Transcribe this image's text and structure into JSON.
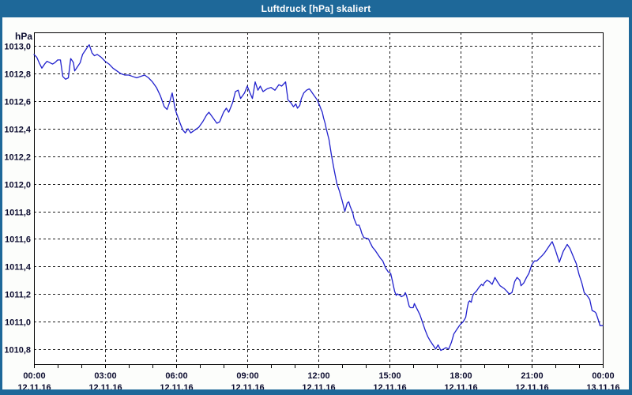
{
  "window": {
    "title": "Luftdruck [hPa] skaliert"
  },
  "colors": {
    "titlebar": "#1e6899",
    "window_border": "#1e6899",
    "window_bg": "#fcfdfb",
    "plot_bg": "#ffffff",
    "grid": "#1c1c1c",
    "frame": "#000000",
    "tick_label": "#0d0d30",
    "line": "#2121cd"
  },
  "chart_data": {
    "type": "line",
    "title": "Luftdruck [hPa] skaliert",
    "ylabel": "hPa",
    "xlabel": "",
    "grid": true,
    "legend": "none",
    "decimal_separator": ",",
    "ylim": [
      1010.69,
      1013.1
    ],
    "xlim_minutes": [
      0,
      1440
    ],
    "y_ticks": [
      1013.0,
      1012.8,
      1012.6,
      1012.4,
      1012.2,
      1012.0,
      1011.8,
      1011.6,
      1011.4,
      1011.2,
      1011.0,
      1010.8
    ],
    "x_minor_tick_minutes": 60,
    "x_ticks": [
      {
        "minutes": 0,
        "time": "00:00",
        "date": "12.11.16"
      },
      {
        "minutes": 180,
        "time": "03:00",
        "date": "12.11.16"
      },
      {
        "minutes": 360,
        "time": "06:00",
        "date": "12.11.16"
      },
      {
        "minutes": 540,
        "time": "09:00",
        "date": "12.11.16"
      },
      {
        "minutes": 720,
        "time": "12:00",
        "date": "12.11.16"
      },
      {
        "minutes": 900,
        "time": "15:00",
        "date": "12.11.16"
      },
      {
        "minutes": 1080,
        "time": "18:00",
        "date": "12.11.16"
      },
      {
        "minutes": 1260,
        "time": "21:00",
        "date": "12.11.16"
      },
      {
        "minutes": 1440,
        "time": "00:00",
        "date": "13.11.16"
      }
    ],
    "series": [
      {
        "name": "Luftdruck",
        "points": [
          [
            0,
            1012.94
          ],
          [
            7,
            1012.92
          ],
          [
            13,
            1012.88
          ],
          [
            20,
            1012.84
          ],
          [
            27,
            1012.87
          ],
          [
            33,
            1012.89
          ],
          [
            40,
            1012.88
          ],
          [
            47,
            1012.87
          ],
          [
            53,
            1012.88
          ],
          [
            60,
            1012.9
          ],
          [
            67,
            1012.9
          ],
          [
            73,
            1012.78
          ],
          [
            80,
            1012.76
          ],
          [
            87,
            1012.77
          ],
          [
            93,
            1012.91
          ],
          [
            100,
            1012.88
          ],
          [
            103,
            1012.82
          ],
          [
            110,
            1012.85
          ],
          [
            117,
            1012.88
          ],
          [
            123,
            1012.94
          ],
          [
            130,
            1012.97
          ],
          [
            137,
            1013.0
          ],
          [
            140,
            1013.01
          ],
          [
            147,
            1012.95
          ],
          [
            153,
            1012.93
          ],
          [
            160,
            1012.94
          ],
          [
            170,
            1012.92
          ],
          [
            180,
            1012.89
          ],
          [
            190,
            1012.87
          ],
          [
            200,
            1012.84
          ],
          [
            210,
            1012.82
          ],
          [
            220,
            1012.8
          ],
          [
            230,
            1012.79
          ],
          [
            240,
            1012.79
          ],
          [
            250,
            1012.78
          ],
          [
            260,
            1012.77
          ],
          [
            270,
            1012.78
          ],
          [
            280,
            1012.79
          ],
          [
            290,
            1012.77
          ],
          [
            300,
            1012.74
          ],
          [
            310,
            1012.7
          ],
          [
            320,
            1012.64
          ],
          [
            330,
            1012.56
          ],
          [
            337,
            1012.54
          ],
          [
            343,
            1012.59
          ],
          [
            350,
            1012.66
          ],
          [
            357,
            1012.55
          ],
          [
            360,
            1012.52
          ],
          [
            370,
            1012.44
          ],
          [
            377,
            1012.39
          ],
          [
            383,
            1012.37
          ],
          [
            390,
            1012.4
          ],
          [
            397,
            1012.37
          ],
          [
            407,
            1012.39
          ],
          [
            417,
            1012.41
          ],
          [
            427,
            1012.45
          ],
          [
            437,
            1012.5
          ],
          [
            443,
            1012.52
          ],
          [
            453,
            1012.48
          ],
          [
            463,
            1012.44
          ],
          [
            470,
            1012.45
          ],
          [
            480,
            1012.52
          ],
          [
            487,
            1012.55
          ],
          [
            493,
            1012.52
          ],
          [
            503,
            1012.59
          ],
          [
            510,
            1012.67
          ],
          [
            517,
            1012.68
          ],
          [
            523,
            1012.62
          ],
          [
            533,
            1012.66
          ],
          [
            540,
            1012.71
          ],
          [
            547,
            1012.66
          ],
          [
            553,
            1012.62
          ],
          [
            560,
            1012.74
          ],
          [
            567,
            1012.68
          ],
          [
            573,
            1012.71
          ],
          [
            580,
            1012.67
          ],
          [
            590,
            1012.69
          ],
          [
            600,
            1012.7
          ],
          [
            610,
            1012.68
          ],
          [
            620,
            1012.72
          ],
          [
            627,
            1012.71
          ],
          [
            637,
            1012.74
          ],
          [
            643,
            1012.61
          ],
          [
            650,
            1012.59
          ],
          [
            657,
            1012.56
          ],
          [
            663,
            1012.58
          ],
          [
            667,
            1012.55
          ],
          [
            673,
            1012.57
          ],
          [
            677,
            1012.62
          ],
          [
            683,
            1012.66
          ],
          [
            690,
            1012.68
          ],
          [
            697,
            1012.69
          ],
          [
            700,
            1012.68
          ],
          [
            707,
            1012.65
          ],
          [
            712,
            1012.63
          ],
          [
            717,
            1012.61
          ],
          [
            720,
            1012.59
          ],
          [
            723,
            1012.57
          ],
          [
            727,
            1012.54
          ],
          [
            730,
            1012.52
          ],
          [
            733,
            1012.48
          ],
          [
            737,
            1012.44
          ],
          [
            740,
            1012.4
          ],
          [
            747,
            1012.32
          ],
          [
            753,
            1012.21
          ],
          [
            760,
            1012.1
          ],
          [
            767,
            1012.0
          ],
          [
            773,
            1011.95
          ],
          [
            780,
            1011.88
          ],
          [
            787,
            1011.8
          ],
          [
            793,
            1011.86
          ],
          [
            797,
            1011.87
          ],
          [
            800,
            1011.84
          ],
          [
            807,
            1011.79
          ],
          [
            810,
            1011.75
          ],
          [
            817,
            1011.7
          ],
          [
            823,
            1011.7
          ],
          [
            827,
            1011.67
          ],
          [
            830,
            1011.64
          ],
          [
            835,
            1011.61
          ],
          [
            847,
            1011.6
          ],
          [
            850,
            1011.58
          ],
          [
            857,
            1011.54
          ],
          [
            863,
            1011.52
          ],
          [
            870,
            1011.49
          ],
          [
            877,
            1011.46
          ],
          [
            883,
            1011.44
          ],
          [
            890,
            1011.39
          ],
          [
            897,
            1011.36
          ],
          [
            903,
            1011.35
          ],
          [
            907,
            1011.3
          ],
          [
            913,
            1011.22
          ],
          [
            917,
            1011.19
          ],
          [
            920,
            1011.2
          ],
          [
            927,
            1011.19
          ],
          [
            930,
            1011.18
          ],
          [
            937,
            1011.19
          ],
          [
            940,
            1011.21
          ],
          [
            943,
            1011.19
          ],
          [
            950,
            1011.11
          ],
          [
            953,
            1011.1
          ],
          [
            960,
            1011.1
          ],
          [
            963,
            1011.13
          ],
          [
            970,
            1011.09
          ],
          [
            977,
            1011.05
          ],
          [
            983,
            1011.0
          ],
          [
            990,
            1010.94
          ],
          [
            997,
            1010.89
          ],
          [
            1003,
            1010.86
          ],
          [
            1010,
            1010.83
          ],
          [
            1017,
            1010.8
          ],
          [
            1023,
            1010.83
          ],
          [
            1030,
            1010.79
          ],
          [
            1037,
            1010.8
          ],
          [
            1043,
            1010.81
          ],
          [
            1050,
            1010.8
          ],
          [
            1057,
            1010.85
          ],
          [
            1063,
            1010.91
          ],
          [
            1070,
            1010.94
          ],
          [
            1077,
            1010.97
          ],
          [
            1080,
            1010.98
          ],
          [
            1087,
            1011.0
          ],
          [
            1093,
            1011.03
          ],
          [
            1097,
            1011.1
          ],
          [
            1100,
            1011.14
          ],
          [
            1103,
            1011.15
          ],
          [
            1107,
            1011.14
          ],
          [
            1110,
            1011.18
          ],
          [
            1113,
            1011.2
          ],
          [
            1120,
            1011.22
          ],
          [
            1127,
            1011.25
          ],
          [
            1133,
            1011.27
          ],
          [
            1137,
            1011.26
          ],
          [
            1140,
            1011.28
          ],
          [
            1147,
            1011.3
          ],
          [
            1153,
            1011.29
          ],
          [
            1160,
            1011.27
          ],
          [
            1167,
            1011.32
          ],
          [
            1173,
            1011.29
          ],
          [
            1180,
            1011.26
          ],
          [
            1190,
            1011.24
          ],
          [
            1197,
            1011.22
          ],
          [
            1203,
            1011.2
          ],
          [
            1210,
            1011.21
          ],
          [
            1217,
            1011.29
          ],
          [
            1223,
            1011.32
          ],
          [
            1230,
            1011.3
          ],
          [
            1233,
            1011.26
          ],
          [
            1240,
            1011.28
          ],
          [
            1247,
            1011.32
          ],
          [
            1253,
            1011.35
          ],
          [
            1260,
            1011.41
          ],
          [
            1267,
            1011.44
          ],
          [
            1273,
            1011.44
          ],
          [
            1280,
            1011.46
          ],
          [
            1287,
            1011.48
          ],
          [
            1293,
            1011.5
          ],
          [
            1300,
            1011.53
          ],
          [
            1307,
            1011.56
          ],
          [
            1312,
            1011.58
          ],
          [
            1320,
            1011.52
          ],
          [
            1330,
            1011.43
          ],
          [
            1340,
            1011.51
          ],
          [
            1350,
            1011.56
          ],
          [
            1357,
            1011.53
          ],
          [
            1367,
            1011.46
          ],
          [
            1373,
            1011.42
          ],
          [
            1380,
            1011.34
          ],
          [
            1387,
            1011.28
          ],
          [
            1393,
            1011.21
          ],
          [
            1400,
            1011.19
          ],
          [
            1407,
            1011.16
          ],
          [
            1413,
            1011.08
          ],
          [
            1420,
            1011.07
          ],
          [
            1423,
            1011.06
          ],
          [
            1430,
            1011.0
          ],
          [
            1433,
            1010.97
          ],
          [
            1440,
            1010.97
          ]
        ]
      }
    ]
  }
}
